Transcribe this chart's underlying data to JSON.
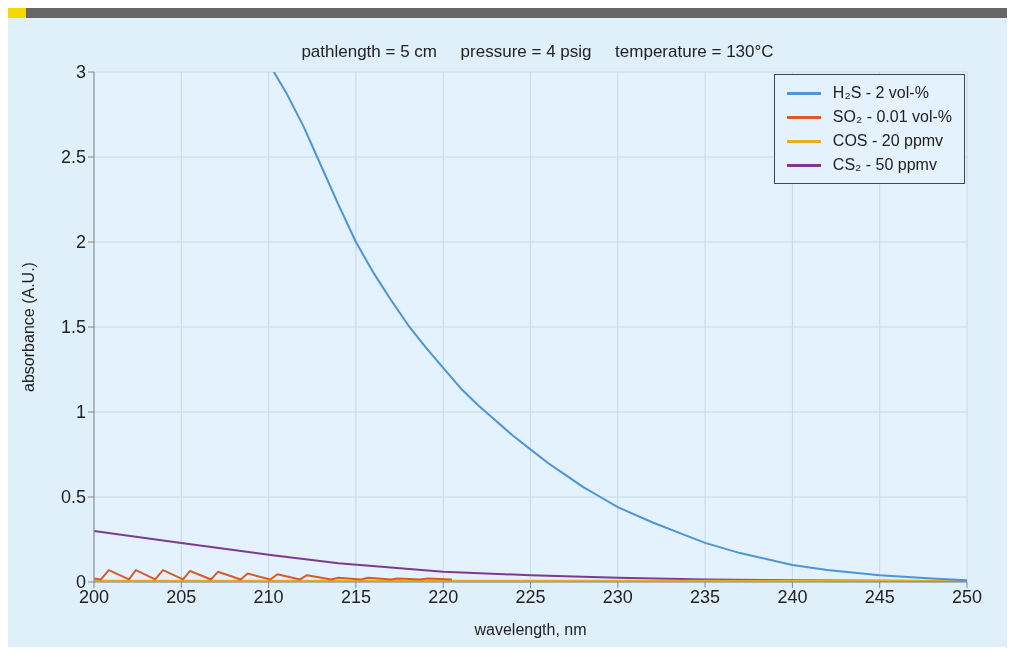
{
  "chart_data": {
    "type": "line",
    "title": "pathlength = 5 cm     pressure = 4 psig     temperature = 130°C",
    "xlabel": "wavelength, nm",
    "ylabel": "absorbance (A.U.)",
    "xlim": [
      200,
      250
    ],
    "xticks": [
      200,
      205,
      210,
      215,
      220,
      225,
      230,
      235,
      240,
      245,
      250
    ],
    "ylim": [
      0,
      3
    ],
    "yticks": [
      0,
      0.5,
      1,
      1.5,
      2,
      2.5,
      3
    ],
    "grid": true,
    "legend": "top right",
    "line_style": "solid",
    "marker": "none",
    "series": [
      {
        "name": "H₂S - 2 vol-%",
        "color": "#4d94d8",
        "x": [
          210.3,
          211,
          212,
          213,
          214,
          215,
          216,
          217,
          218,
          219,
          220,
          221,
          222,
          223,
          224,
          225,
          226,
          227,
          228,
          229,
          230,
          232,
          234,
          235,
          237,
          240,
          242,
          245,
          248,
          250
        ],
        "values": [
          3.0,
          2.88,
          2.68,
          2.45,
          2.22,
          2.0,
          1.82,
          1.66,
          1.51,
          1.38,
          1.26,
          1.14,
          1.04,
          0.95,
          0.86,
          0.78,
          0.7,
          0.63,
          0.56,
          0.5,
          0.44,
          0.35,
          0.27,
          0.23,
          0.17,
          0.1,
          0.07,
          0.04,
          0.02,
          0.01
        ]
      },
      {
        "name": "SO₂ - 0.01 vol-%",
        "color": "#d95a2b",
        "x": [
          200,
          200.4,
          200.85,
          202.0,
          202.4,
          203.5,
          203.95,
          205.1,
          205.5,
          206.7,
          207.1,
          208.4,
          208.8,
          210.1,
          210.5,
          211.8,
          212.2,
          213.6,
          214.0,
          215.3,
          215.7,
          217.0,
          217.4,
          218.7,
          219.1,
          220.5
        ],
        "values": [
          0.02,
          0.015,
          0.07,
          0.015,
          0.07,
          0.015,
          0.07,
          0.015,
          0.065,
          0.015,
          0.06,
          0.015,
          0.05,
          0.015,
          0.045,
          0.015,
          0.04,
          0.015,
          0.025,
          0.015,
          0.025,
          0.015,
          0.02,
          0.015,
          0.02,
          0.015
        ]
      },
      {
        "name": "COS - 20 ppmv",
        "color": "#e3b021",
        "x": [
          200,
          250
        ],
        "values": [
          0.008,
          0.008
        ]
      },
      {
        "name": "CS₂ - 50 ppmv",
        "color": "#7e3a92",
        "x": [
          200,
          205,
          210,
          214,
          220,
          225,
          230,
          235,
          240,
          250
        ],
        "values": [
          0.3,
          0.23,
          0.16,
          0.11,
          0.06,
          0.04,
          0.025,
          0.015,
          0.01,
          0.005
        ]
      }
    ]
  }
}
